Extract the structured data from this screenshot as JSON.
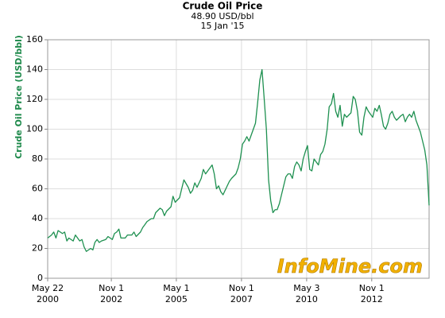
{
  "chart_data": {
    "type": "line",
    "title": "Crude Oil Price",
    "subtitle": [
      "48.90 USD/bbl",
      "15 Jan '15"
    ],
    "y_label": "Crude Oil Price (USD/bbl)",
    "watermark": "InfoMine.com",
    "grid": true,
    "xlim": [
      "2000-05-22",
      "2015-01-15"
    ],
    "xticks": [
      {
        "value": "2000-05-22",
        "label": [
          "May 22",
          "2000"
        ]
      },
      {
        "value": "2002-11-01",
        "label": [
          "Nov 1",
          "2002"
        ]
      },
      {
        "value": "2005-05-01",
        "label": [
          "May 1",
          "2005"
        ]
      },
      {
        "value": "2007-11-01",
        "label": [
          "Nov 1",
          "2007"
        ]
      },
      {
        "value": "2010-05-03",
        "label": [
          "May 3",
          "2010"
        ]
      },
      {
        "value": "2012-11-01",
        "label": [
          "Nov 1",
          "2012"
        ]
      }
    ],
    "ylim": [
      0,
      160
    ],
    "yticks": [
      0,
      20,
      40,
      60,
      80,
      100,
      120,
      140,
      160
    ],
    "x": [
      "2000-05-22",
      "2000-07",
      "2000-08",
      "2000-09",
      "2000-10",
      "2000-12",
      "2001-01",
      "2001-02",
      "2001-03",
      "2001-05",
      "2001-06",
      "2001-08",
      "2001-09",
      "2001-10",
      "2001-11",
      "2002-01",
      "2002-02",
      "2002-03",
      "2002-04",
      "2002-05",
      "2002-06",
      "2002-08",
      "2002-09",
      "2002-11",
      "2002-12",
      "2003-01",
      "2003-02",
      "2003-03",
      "2003-05",
      "2003-06",
      "2003-08",
      "2003-09",
      "2003-10",
      "2003-12",
      "2004-01",
      "2004-02",
      "2004-03",
      "2004-05",
      "2004-06",
      "2004-07",
      "2004-09",
      "2004-10",
      "2004-11",
      "2004-12",
      "2005-02",
      "2005-03",
      "2005-04",
      "2005-06",
      "2005-07",
      "2005-08",
      "2005-10",
      "2005-11",
      "2005-12",
      "2006-01",
      "2006-02",
      "2006-04",
      "2006-05",
      "2006-06",
      "2006-08",
      "2006-09",
      "2006-10",
      "2006-11",
      "2006-12",
      "2007-01",
      "2007-02",
      "2007-04",
      "2007-05",
      "2007-06",
      "2007-08",
      "2007-09",
      "2007-10",
      "2007-11",
      "2007-12",
      "2008-01",
      "2008-02",
      "2008-04",
      "2008-05",
      "2008-06",
      "2008-07",
      "2008-08",
      "2008-09",
      "2008-10",
      "2008-11",
      "2008-12",
      "2009-01",
      "2009-02",
      "2009-03",
      "2009-04",
      "2009-05",
      "2009-07",
      "2009-08",
      "2009-09",
      "2009-10",
      "2009-11",
      "2009-12",
      "2010-01",
      "2010-02",
      "2010-03",
      "2010-04",
      "2010-05",
      "2010-06",
      "2010-07",
      "2010-08",
      "2010-10",
      "2010-11",
      "2010-12",
      "2011-01",
      "2011-02",
      "2011-03",
      "2011-04",
      "2011-05",
      "2011-06",
      "2011-07",
      "2011-08",
      "2011-09",
      "2011-10",
      "2011-11",
      "2012-01",
      "2012-02",
      "2012-03",
      "2012-04",
      "2012-05",
      "2012-06",
      "2012-07",
      "2012-08",
      "2012-09",
      "2012-11",
      "2012-12",
      "2013-01",
      "2013-02",
      "2013-03",
      "2013-04",
      "2013-05",
      "2013-06",
      "2013-07",
      "2013-08",
      "2013-09",
      "2013-10",
      "2013-12",
      "2014-01",
      "2014-02",
      "2014-03",
      "2014-04",
      "2014-05",
      "2014-06",
      "2014-07",
      "2014-08",
      "2014-09",
      "2014-11",
      "2014-12",
      "2015-01-15"
    ],
    "series": [
      {
        "color": "#1e9050",
        "values": [
          27,
          29,
          31,
          27,
          32,
          30,
          31,
          25,
          27,
          25,
          29,
          25,
          26,
          21,
          18,
          20,
          19,
          24,
          26,
          24,
          25,
          26,
          28,
          26,
          30,
          31,
          33,
          27,
          27,
          29,
          29,
          31,
          28,
          31,
          34,
          36,
          38,
          40,
          40,
          44,
          47,
          46,
          42,
          45,
          48,
          55,
          51,
          54,
          60,
          66,
          61,
          57,
          59,
          64,
          61,
          67,
          73,
          70,
          74,
          76,
          70,
          60,
          62,
          58,
          56,
          62,
          65,
          67,
          70,
          74,
          80,
          90,
          92,
          95,
          92,
          100,
          104,
          118,
          133,
          140,
          120,
          100,
          66,
          52,
          44,
          46,
          46,
          50,
          56,
          68,
          70,
          70,
          67,
          75,
          78,
          76,
          72,
          80,
          85,
          89,
          73,
          72,
          80,
          76,
          83,
          85,
          90,
          100,
          115,
          117,
          124,
          112,
          108,
          116,
          102,
          110,
          108,
          111,
          122,
          120,
          112,
          98,
          96,
          108,
          115,
          112,
          108,
          114,
          112,
          116,
          110,
          102,
          100,
          104,
          110,
          112,
          108,
          106,
          109,
          110,
          105,
          108,
          110,
          108,
          112,
          106,
          102,
          98,
          86,
          76,
          48.9
        ]
      }
    ]
  }
}
